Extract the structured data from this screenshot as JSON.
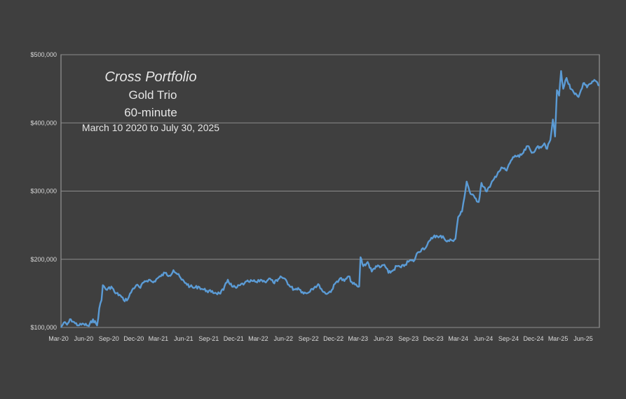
{
  "chart_data": {
    "type": "line",
    "title": "Cross Portfolio",
    "subtitle_lines": [
      "Gold Trio",
      "60-minute",
      "March 10 2020 to July 30, 2025"
    ],
    "xlabel": "",
    "ylabel": "",
    "x_start": "2020-03-10",
    "x_end": "2025-07-30",
    "x_tick_labels": [
      "Mar-20",
      "Jun-20",
      "Sep-20",
      "Dec-20",
      "Mar-21",
      "Jun-21",
      "Sep-21",
      "Dec-21",
      "Mar-22",
      "Jun-22",
      "Sep-22",
      "Dec-22",
      "Mar-23",
      "Jun-23",
      "Sep-23",
      "Dec-23",
      "Mar-24",
      "Jun-24",
      "Sep-24",
      "Dec-24",
      "Mar-25",
      "Jun-25"
    ],
    "y_tick_labels": [
      "$100,000",
      "$200,000",
      "$300,000",
      "$400,000",
      "$500,000"
    ],
    "ylim": [
      100000,
      500000
    ],
    "y_ticks": [
      100000,
      200000,
      300000,
      400000,
      500000
    ],
    "grid": true,
    "line_color": "#5b9bd5",
    "series": [
      {
        "points": [
          [
            "2020-03-10",
            100000
          ],
          [
            "2020-03-20",
            107000
          ],
          [
            "2020-04-01",
            104000
          ],
          [
            "2020-04-15",
            112000
          ],
          [
            "2020-05-01",
            106000
          ],
          [
            "2020-05-15",
            103000
          ],
          [
            "2020-06-01",
            105000
          ],
          [
            "2020-06-20",
            102000
          ],
          [
            "2020-07-05",
            112000
          ],
          [
            "2020-07-20",
            103000
          ],
          [
            "2020-07-28",
            128000
          ],
          [
            "2020-08-05",
            140000
          ],
          [
            "2020-08-10",
            162000
          ],
          [
            "2020-08-25",
            155000
          ],
          [
            "2020-09-10",
            160000
          ],
          [
            "2020-09-25",
            150000
          ],
          [
            "2020-10-10",
            148000
          ],
          [
            "2020-10-25",
            140000
          ],
          [
            "2020-11-10",
            142000
          ],
          [
            "2020-11-25",
            155000
          ],
          [
            "2020-12-10",
            162000
          ],
          [
            "2020-12-25",
            158000
          ],
          [
            "2021-01-10",
            168000
          ],
          [
            "2021-01-25",
            170000
          ],
          [
            "2021-02-10",
            166000
          ],
          [
            "2021-02-25",
            172000
          ],
          [
            "2021-03-10",
            175000
          ],
          [
            "2021-03-25",
            180000
          ],
          [
            "2021-04-10",
            176000
          ],
          [
            "2021-04-25",
            184000
          ],
          [
            "2021-05-10",
            178000
          ],
          [
            "2021-05-25",
            170000
          ],
          [
            "2021-06-10",
            165000
          ],
          [
            "2021-06-25",
            160000
          ],
          [
            "2021-07-10",
            158000
          ],
          [
            "2021-07-25",
            160000
          ],
          [
            "2021-08-10",
            156000
          ],
          [
            "2021-08-25",
            154000
          ],
          [
            "2021-09-10",
            152000
          ],
          [
            "2021-09-25",
            151000
          ],
          [
            "2021-10-10",
            150000
          ],
          [
            "2021-10-25",
            155000
          ],
          [
            "2021-11-10",
            170000
          ],
          [
            "2021-11-25",
            160000
          ],
          [
            "2021-12-10",
            158000
          ],
          [
            "2021-12-25",
            162000
          ],
          [
            "2022-01-10",
            165000
          ],
          [
            "2022-01-25",
            167000
          ],
          [
            "2022-02-10",
            168000
          ],
          [
            "2022-02-25",
            166000
          ],
          [
            "2022-03-10",
            170000
          ],
          [
            "2022-03-25",
            167000
          ],
          [
            "2022-04-10",
            172000
          ],
          [
            "2022-04-25",
            166000
          ],
          [
            "2022-05-10",
            168000
          ],
          [
            "2022-05-25",
            174000
          ],
          [
            "2022-06-10",
            170000
          ],
          [
            "2022-06-25",
            160000
          ],
          [
            "2022-07-10",
            156000
          ],
          [
            "2022-07-25",
            158000
          ],
          [
            "2022-08-10",
            152000
          ],
          [
            "2022-08-25",
            150000
          ],
          [
            "2022-09-10",
            156000
          ],
          [
            "2022-09-25",
            160000
          ],
          [
            "2022-10-10",
            162000
          ],
          [
            "2022-10-25",
            152000
          ],
          [
            "2022-11-10",
            150000
          ],
          [
            "2022-11-25",
            155000
          ],
          [
            "2022-12-10",
            166000
          ],
          [
            "2022-12-25",
            172000
          ],
          [
            "2023-01-10",
            168000
          ],
          [
            "2023-01-25",
            175000
          ],
          [
            "2023-02-10",
            164000
          ],
          [
            "2023-02-25",
            161000
          ],
          [
            "2023-03-05",
            160000
          ],
          [
            "2023-03-10",
            203000
          ],
          [
            "2023-03-20",
            190000
          ],
          [
            "2023-04-05",
            196000
          ],
          [
            "2023-04-20",
            182000
          ],
          [
            "2023-05-05",
            190000
          ],
          [
            "2023-05-20",
            188000
          ],
          [
            "2023-06-05",
            192000
          ],
          [
            "2023-06-20",
            180000
          ],
          [
            "2023-07-05",
            183000
          ],
          [
            "2023-07-20",
            190000
          ],
          [
            "2023-08-05",
            188000
          ],
          [
            "2023-08-20",
            192000
          ],
          [
            "2023-09-05",
            198000
          ],
          [
            "2023-09-20",
            197000
          ],
          [
            "2023-10-05",
            210000
          ],
          [
            "2023-10-20",
            215000
          ],
          [
            "2023-11-05",
            218000
          ],
          [
            "2023-11-20",
            228000
          ],
          [
            "2023-12-05",
            235000
          ],
          [
            "2023-12-20",
            232000
          ],
          [
            "2024-01-05",
            234000
          ],
          [
            "2024-01-20",
            226000
          ],
          [
            "2024-02-05",
            228000
          ],
          [
            "2024-02-20",
            230000
          ],
          [
            "2024-03-01",
            262000
          ],
          [
            "2024-03-15",
            270000
          ],
          [
            "2024-04-01",
            314000
          ],
          [
            "2024-04-15",
            296000
          ],
          [
            "2024-05-01",
            290000
          ],
          [
            "2024-05-15",
            284000
          ],
          [
            "2024-05-25",
            312000
          ],
          [
            "2024-06-10",
            300000
          ],
          [
            "2024-06-25",
            306000
          ],
          [
            "2024-07-10",
            318000
          ],
          [
            "2024-07-25",
            328000
          ],
          [
            "2024-08-10",
            334000
          ],
          [
            "2024-08-25",
            330000
          ],
          [
            "2024-09-10",
            345000
          ],
          [
            "2024-09-25",
            352000
          ],
          [
            "2024-10-10",
            350000
          ],
          [
            "2024-10-25",
            356000
          ],
          [
            "2024-11-10",
            366000
          ],
          [
            "2024-11-25",
            356000
          ],
          [
            "2024-12-10",
            362000
          ],
          [
            "2024-12-25",
            365000
          ],
          [
            "2025-01-10",
            370000
          ],
          [
            "2025-01-20",
            362000
          ],
          [
            "2025-02-01",
            375000
          ],
          [
            "2025-02-10",
            405000
          ],
          [
            "2025-02-18",
            380000
          ],
          [
            "2025-02-25",
            448000
          ],
          [
            "2025-03-05",
            440000
          ],
          [
            "2025-03-12",
            476000
          ],
          [
            "2025-03-20",
            450000
          ],
          [
            "2025-04-01",
            466000
          ],
          [
            "2025-04-15",
            450000
          ],
          [
            "2025-05-01",
            442000
          ],
          [
            "2025-05-15",
            438000
          ],
          [
            "2025-06-01",
            458000
          ],
          [
            "2025-06-15",
            452000
          ],
          [
            "2025-07-01",
            458000
          ],
          [
            "2025-07-15",
            462000
          ],
          [
            "2025-07-30",
            455000
          ]
        ]
      }
    ]
  }
}
